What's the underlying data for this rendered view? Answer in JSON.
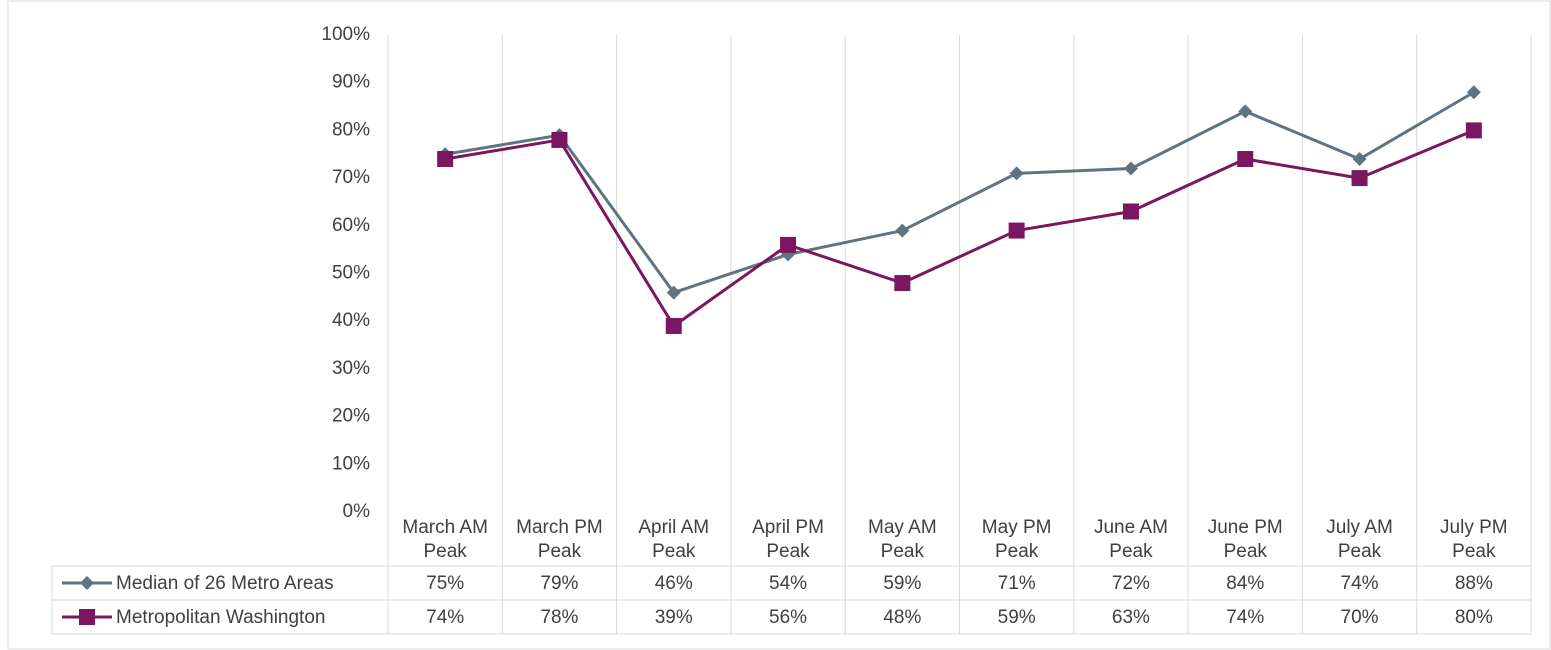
{
  "chart_data": {
    "type": "line",
    "categories": [
      "March AM Peak",
      "March PM Peak",
      "April AM Peak",
      "April PM Peak",
      "May AM Peak",
      "May PM Peak",
      "June AM Peak",
      "June PM Peak",
      "July AM Peak",
      "July PM Peak"
    ],
    "series": [
      {
        "name": "Median of 26 Metro Areas",
        "color": "#5f7480",
        "marker": "diamond",
        "values": [
          75,
          79,
          46,
          54,
          59,
          71,
          72,
          84,
          74,
          88
        ],
        "value_labels": [
          "75%",
          "79%",
          "46%",
          "54%",
          "59%",
          "71%",
          "72%",
          "84%",
          "74%",
          "88%"
        ]
      },
      {
        "name": "Metropolitan Washington",
        "color": "#7b1660",
        "marker": "square",
        "values": [
          74,
          78,
          39,
          56,
          48,
          59,
          63,
          74,
          70,
          80
        ],
        "value_labels": [
          "74%",
          "78%",
          "39%",
          "56%",
          "48%",
          "59%",
          "63%",
          "74%",
          "70%",
          "80%"
        ]
      }
    ],
    "ylim": [
      0,
      100
    ],
    "yticks": [
      {
        "value": 0,
        "label": "0%"
      },
      {
        "value": 10,
        "label": "10%"
      },
      {
        "value": 20,
        "label": "20%"
      },
      {
        "value": 30,
        "label": "30%"
      },
      {
        "value": 40,
        "label": "40%"
      },
      {
        "value": 50,
        "label": "50%"
      },
      {
        "value": 60,
        "label": "60%"
      },
      {
        "value": 70,
        "label": "70%"
      },
      {
        "value": 80,
        "label": "80%"
      },
      {
        "value": 90,
        "label": "90%"
      },
      {
        "value": 100,
        "label": "100%"
      }
    ],
    "grid": "vertical"
  }
}
